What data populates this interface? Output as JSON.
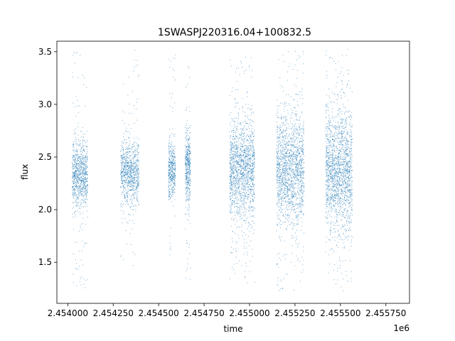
{
  "chart_data": {
    "type": "scatter",
    "title": "1SWASPJ220316.04+100832.5",
    "xlabel": "time",
    "ylabel": "flux",
    "x_offset_label": "1e6",
    "xlim": [
      2453940,
      2455880
    ],
    "ylim": [
      1.11,
      3.6
    ],
    "grid": false,
    "marker_color": "#1f77b4",
    "x_ticks": [
      {
        "value": 2454000,
        "label": "2.454000"
      },
      {
        "value": 2454250,
        "label": "2.454250"
      },
      {
        "value": 2454500,
        "label": "2.454500"
      },
      {
        "value": 2454750,
        "label": "2.454750"
      },
      {
        "value": 2455000,
        "label": "2.455000"
      },
      {
        "value": 2455250,
        "label": "2.455250"
      },
      {
        "value": 2455500,
        "label": "2.455500"
      },
      {
        "value": 2455750,
        "label": "2.455750"
      }
    ],
    "y_ticks": [
      {
        "value": 1.5,
        "label": "1.5"
      },
      {
        "value": 2.0,
        "label": "2.0"
      },
      {
        "value": 2.5,
        "label": "2.5"
      },
      {
        "value": 3.0,
        "label": "3.0"
      },
      {
        "value": 3.5,
        "label": "3.5"
      }
    ],
    "series": [
      {
        "x_ranges": [
          [
            2454024,
            2454110
          ],
          [
            2454290,
            2454392
          ],
          [
            2454553,
            2454592
          ],
          [
            2454646,
            2454675
          ],
          [
            2454890,
            2455028
          ],
          [
            2455148,
            2455300
          ],
          [
            2455418,
            2455565
          ]
        ],
        "y_center": [
          2.33,
          2.35,
          2.38,
          2.4,
          2.38,
          2.38,
          2.38
        ],
        "y_core_band": [
          [
            2.0,
            2.65
          ],
          [
            2.05,
            2.65
          ],
          [
            2.1,
            2.65
          ],
          [
            2.05,
            2.75
          ],
          [
            1.95,
            2.85
          ],
          [
            1.85,
            2.9
          ],
          [
            1.8,
            2.95
          ]
        ],
        "y_extent": [
          [
            1.25,
            3.5
          ],
          [
            1.45,
            3.52
          ],
          [
            1.55,
            3.48
          ],
          [
            1.22,
            3.42
          ],
          [
            1.3,
            3.5
          ],
          [
            1.22,
            3.53
          ],
          [
            1.22,
            3.53
          ]
        ]
      }
    ]
  }
}
